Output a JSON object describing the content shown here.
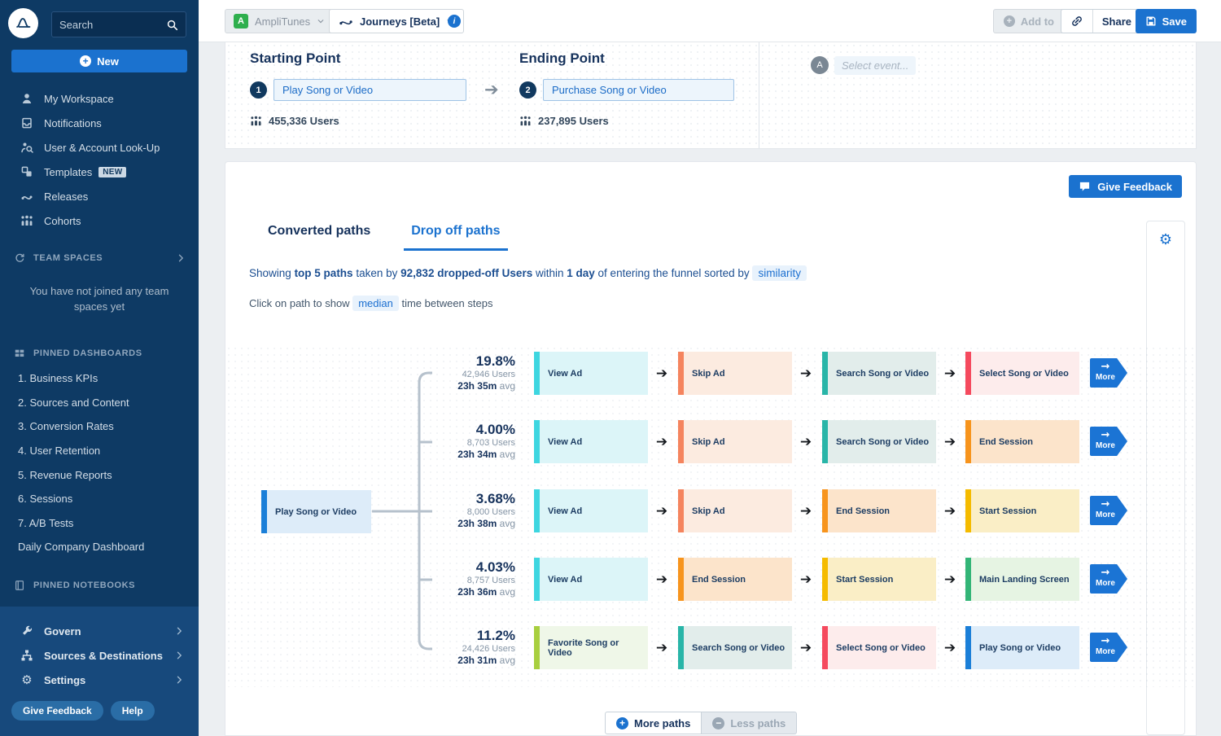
{
  "accent_color": "#1b72cf",
  "sidebar": {
    "search_placeholder": "Search",
    "new_button": "New",
    "nav": [
      {
        "label": "My Workspace",
        "icon": "person-icon"
      },
      {
        "label": "Notifications",
        "icon": "notifications-icon"
      },
      {
        "label": "User & Account Look-Up",
        "icon": "user-lookup-icon"
      },
      {
        "label": "Templates",
        "icon": "templates-icon",
        "badge": "NEW"
      },
      {
        "label": "Releases",
        "icon": "releases-icon"
      },
      {
        "label": "Cohorts",
        "icon": "cohorts-icon"
      }
    ],
    "team_spaces": {
      "header": "TEAM SPACES",
      "empty_text": "You have not joined any team spaces yet"
    },
    "pinned_dashboards": {
      "header": "PINNED DASHBOARDS",
      "items": [
        "1. Business KPIs",
        "2. Sources and Content",
        "3. Conversion Rates",
        "4. User Retention",
        "5. Revenue Reports",
        "6. Sessions",
        "7. A/B Tests",
        "Daily Company Dashboard"
      ]
    },
    "pinned_notebooks": {
      "header": "PINNED NOTEBOOKS"
    },
    "bottom_nav": [
      {
        "label": "Govern",
        "icon": "wrench-icon"
      },
      {
        "label": "Sources & Destinations",
        "icon": "tree-icon"
      },
      {
        "label": "Settings",
        "icon": "gear-icon"
      }
    ],
    "footer_buttons": [
      "Give Feedback",
      "Help"
    ]
  },
  "topbar": {
    "project": {
      "initial": "A",
      "label": "AmpliTunes"
    },
    "view": {
      "label": "Journeys [Beta]"
    },
    "add_to": "Add to",
    "share": "Share",
    "save": "Save"
  },
  "funnel": {
    "starting": {
      "title": "Starting Point",
      "step": "1",
      "event": "Play Song or Video",
      "users": "455,336 Users"
    },
    "ending": {
      "title": "Ending Point",
      "step": "2",
      "event": "Purchase Song or Video",
      "users": "237,895 Users"
    },
    "event_picker": {
      "avatar": "A",
      "placeholder": "Select event..."
    }
  },
  "paths": {
    "give_feedback": "Give Feedback",
    "tabs": [
      {
        "label": "Converted paths",
        "active": false
      },
      {
        "label": "Drop off paths",
        "active": true
      }
    ],
    "summary": {
      "prefix": "Showing",
      "bold1": "top 5 paths",
      "mid1": "taken by",
      "bold2": "92,832 dropped-off Users",
      "mid2": "within",
      "bold3": "1 day",
      "mid3": "of entering the funnel sorted by",
      "chip": "similarity"
    },
    "hint": {
      "prefix": "Click on path to show",
      "chip": "median",
      "suffix": "time between steps"
    },
    "source": {
      "label": "Play Song or Video",
      "color": "play"
    },
    "colors": {
      "view_ad": {
        "accent": "#3ed6e0",
        "bg": "#dcf5f8"
      },
      "skip_ad": {
        "accent": "#f5845e",
        "bg": "#fcebe0"
      },
      "search": {
        "accent": "#29b5a8",
        "bg": "#e2edeb"
      },
      "select": {
        "accent": "#f54a5e",
        "bg": "#fdecec"
      },
      "end_session": {
        "accent": "#f7941d",
        "bg": "#fce4cb"
      },
      "start_session": {
        "accent": "#f5bb00",
        "bg": "#faeec6"
      },
      "main_landing": {
        "accent": "#33b577",
        "bg": "#e6f4e3"
      },
      "favorite": {
        "accent": "#a8cf3f",
        "bg": "#eff7e8"
      },
      "play": {
        "accent": "#1b7fd8",
        "bg": "#ddecf9"
      }
    },
    "rows": [
      {
        "pct": "19.8%",
        "users": "42,946 Users",
        "avg": "23h 35m",
        "avg_suffix": "avg",
        "more": "More",
        "steps": [
          {
            "label": "View Ad",
            "color": "view_ad"
          },
          {
            "label": "Skip Ad",
            "color": "skip_ad"
          },
          {
            "label": "Search Song or Video",
            "color": "search"
          },
          {
            "label": "Select Song or Video",
            "color": "select"
          }
        ]
      },
      {
        "pct": "4.00%",
        "users": "8,703 Users",
        "avg": "23h 34m",
        "avg_suffix": "avg",
        "more": "More",
        "steps": [
          {
            "label": "View Ad",
            "color": "view_ad"
          },
          {
            "label": "Skip Ad",
            "color": "skip_ad"
          },
          {
            "label": "Search Song or Video",
            "color": "search"
          },
          {
            "label": "End Session",
            "color": "end_session"
          }
        ]
      },
      {
        "pct": "3.68%",
        "users": "8,000 Users",
        "avg": "23h 38m",
        "avg_suffix": "avg",
        "more": "More",
        "steps": [
          {
            "label": "View Ad",
            "color": "view_ad"
          },
          {
            "label": "Skip Ad",
            "color": "skip_ad"
          },
          {
            "label": "End Session",
            "color": "end_session"
          },
          {
            "label": "Start Session",
            "color": "start_session"
          }
        ]
      },
      {
        "pct": "4.03%",
        "users": "8,757 Users",
        "avg": "23h 36m",
        "avg_suffix": "avg",
        "more": "More",
        "steps": [
          {
            "label": "View Ad",
            "color": "view_ad"
          },
          {
            "label": "End Session",
            "color": "end_session"
          },
          {
            "label": "Start Session",
            "color": "start_session"
          },
          {
            "label": "Main Landing Screen",
            "color": "main_landing"
          }
        ]
      },
      {
        "pct": "11.2%",
        "users": "24,426 Users",
        "avg": "23h 31m",
        "avg_suffix": "avg",
        "more": "More",
        "steps": [
          {
            "label": "Favorite Song or Video",
            "color": "favorite"
          },
          {
            "label": "Search Song or Video",
            "color": "search"
          },
          {
            "label": "Select Song or Video",
            "color": "select"
          },
          {
            "label": "Play Song or Video",
            "color": "play"
          }
        ]
      }
    ],
    "footer": {
      "more": "More paths",
      "less": "Less paths"
    }
  }
}
